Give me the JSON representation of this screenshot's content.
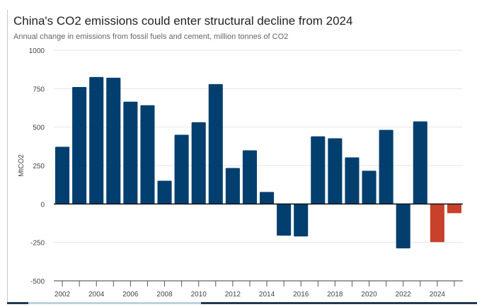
{
  "chart_data": {
    "type": "bar",
    "title": "China's CO2 emissions could enter structural decline from 2024",
    "subtitle": "Annual change in emissions from fossil fuels and cement, million tonnes of CO2",
    "xlabel": "",
    "ylabel": "MtCO2",
    "ylim": [
      -500,
      1000
    ],
    "yticks": [
      1000,
      750,
      500,
      250,
      0,
      -250,
      -500
    ],
    "ytick_labels": [
      "1000",
      "750",
      "500",
      "250",
      "0",
      "-250",
      "-500"
    ],
    "xtick_labels": [
      "2002",
      "2004",
      "2006",
      "2008",
      "2010",
      "2012",
      "2014",
      "2016",
      "2018",
      "2020",
      "2022",
      "2024"
    ],
    "categories": [
      2002,
      2003,
      2004,
      2005,
      2006,
      2007,
      2008,
      2009,
      2010,
      2011,
      2012,
      2013,
      2014,
      2015,
      2016,
      2017,
      2018,
      2019,
      2020,
      2021,
      2022,
      2023,
      2024,
      2025
    ],
    "values": [
      372,
      761,
      826,
      821,
      665,
      642,
      151,
      450,
      532,
      780,
      234,
      349,
      78,
      -206,
      -211,
      440,
      427,
      303,
      216,
      482,
      -289,
      537,
      -248,
      -60
    ],
    "projected_from": 2024,
    "colors": {
      "historical": "#033f6e",
      "projected": "#c8412a"
    },
    "grid": true
  }
}
